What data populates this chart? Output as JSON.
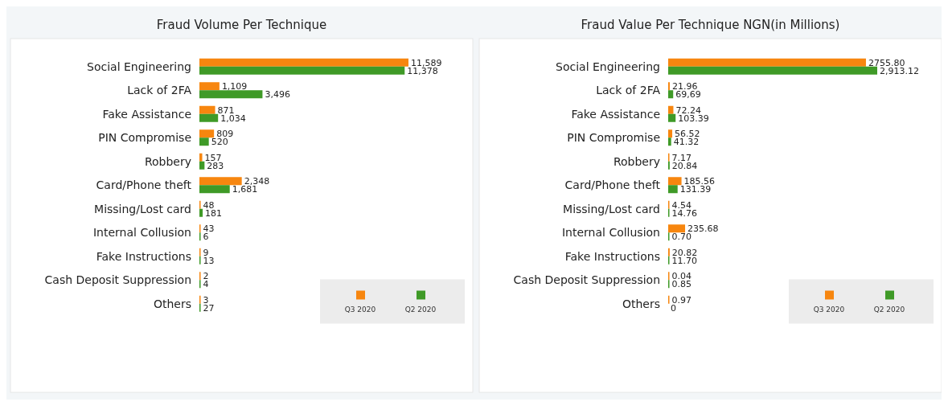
{
  "chart_data": [
    {
      "type": "bar",
      "orientation": "horizontal",
      "title": "Fraud Volume Per Technique",
      "categories": [
        "Social Engineering",
        "Lack of 2FA",
        "Fake Assistance",
        "PIN Compromise",
        "Robbery",
        "Card/Phone theft",
        "Missing/Lost card",
        "Internal Collusion",
        "Fake Instructions",
        "Cash Deposit Suppression",
        "Others"
      ],
      "legend": "bottom right",
      "series": [
        {
          "name": "Q3 2020",
          "color": "#f7860f",
          "values": [
            11589,
            1109,
            871,
            809,
            157,
            2348,
            48,
            43,
            9,
            2,
            3
          ],
          "value_labels": [
            "11,589",
            "1,109",
            "871",
            "809",
            "157",
            "2,348",
            "48",
            "43",
            "9",
            "2",
            "3"
          ]
        },
        {
          "name": "Q2 2020",
          "color": "#3f9a27",
          "values": [
            11378,
            3496,
            1034,
            520,
            283,
            1681,
            181,
            6,
            13,
            4,
            27
          ],
          "value_labels": [
            "11,378",
            "3,496",
            "1,034",
            "520",
            "283",
            "1,681",
            "181",
            "6",
            "13",
            "4",
            "27"
          ]
        }
      ]
    },
    {
      "type": "bar",
      "orientation": "horizontal",
      "title": "Fraud Value Per Technique NGN(in Millions)",
      "categories": [
        "Social Engineering",
        "Lack of 2FA",
        "Fake Assistance",
        "PIN Compromise",
        "Robbery",
        "Card/Phone theft",
        "Missing/Lost card",
        "Internal Collusion",
        "Fake Instructions",
        "Cash Deposit Suppression",
        "Others"
      ],
      "legend": "bottom right",
      "series": [
        {
          "name": "Q3 2020",
          "color": "#f7860f",
          "values": [
            2755.8,
            21.96,
            72.24,
            56.52,
            7.17,
            185.56,
            4.54,
            235.68,
            20.82,
            0.04,
            0.97
          ],
          "value_labels": [
            "2755.80",
            "21.96",
            "72.24",
            "56.52",
            "7.17",
            "185.56",
            "4.54",
            "235.68",
            "20.82",
            "0.04",
            "0.97"
          ]
        },
        {
          "name": "Q2 2020",
          "color": "#3f9a27",
          "values": [
            2913.12,
            69.69,
            103.39,
            41.32,
            20.84,
            131.39,
            14.76,
            0.7,
            11.7,
            0.85,
            0
          ],
          "value_labels": [
            "2,913.12",
            "69,69",
            "103.39",
            "41.32",
            "20.84",
            "131.39",
            "14.76",
            "0.70",
            "11.70",
            "0.85",
            "0"
          ]
        }
      ]
    }
  ]
}
